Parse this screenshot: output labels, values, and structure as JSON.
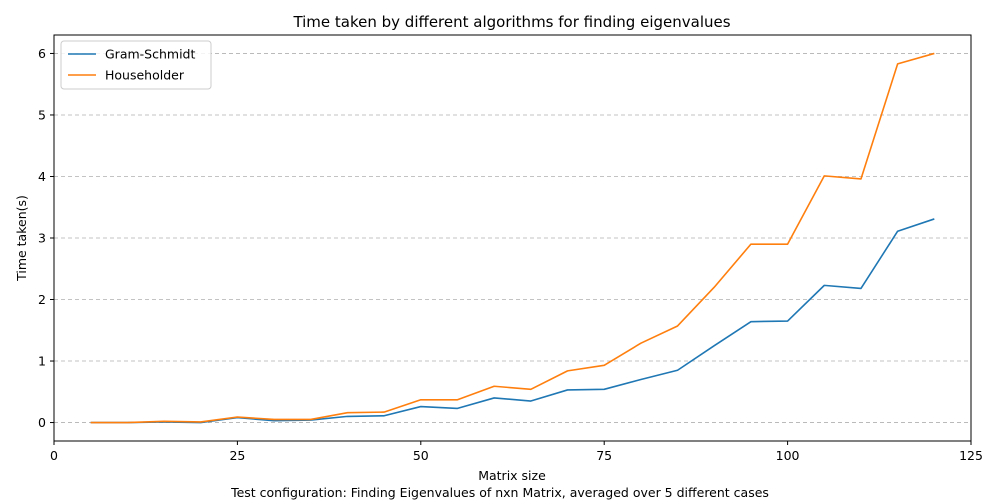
{
  "chart_data": {
    "type": "line",
    "title": "Time taken by different algorithms for finding eigenvalues",
    "xlabel": "Matrix size",
    "ylabel": "Time taken(s)",
    "caption": "Test configuration: Finding Eigenvalues of nxn Matrix, averaged over 5 different cases",
    "xlim": [
      0,
      125
    ],
    "ylim": [
      -0.3,
      6.3
    ],
    "x_ticks": [
      0,
      25,
      50,
      75,
      100,
      125
    ],
    "y_ticks": [
      0,
      1,
      2,
      3,
      4,
      5,
      6
    ],
    "grid": "y-dashed",
    "legend_position": "top-left",
    "x": [
      5,
      10,
      15,
      20,
      25,
      30,
      35,
      40,
      45,
      50,
      55,
      60,
      65,
      70,
      75,
      80,
      85,
      90,
      95,
      100,
      105,
      110,
      115,
      120
    ],
    "series": [
      {
        "name": "Gram-Schmidt",
        "color": "#1f77b4",
        "values": [
          0.0,
          0.0,
          0.01,
          0.0,
          0.08,
          0.03,
          0.04,
          0.1,
          0.11,
          0.26,
          0.23,
          0.4,
          0.35,
          0.53,
          0.54,
          0.7,
          0.85,
          1.25,
          1.64,
          1.65,
          2.23,
          2.18,
          3.11,
          3.31
        ]
      },
      {
        "name": "Householder",
        "color": "#ff7f0e",
        "values": [
          0.0,
          0.0,
          0.02,
          0.01,
          0.09,
          0.05,
          0.05,
          0.16,
          0.17,
          0.37,
          0.37,
          0.59,
          0.54,
          0.84,
          0.93,
          1.29,
          1.57,
          2.2,
          2.9,
          2.9,
          4.01,
          3.96,
          5.83,
          6.0
        ]
      }
    ]
  }
}
